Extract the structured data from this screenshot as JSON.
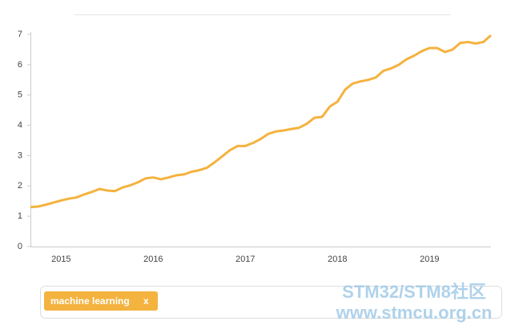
{
  "chart_data": {
    "type": "line",
    "categories": [
      null,
      null,
      null,
      null,
      "2015",
      null,
      null,
      null,
      null,
      null,
      null,
      null,
      null,
      null,
      null,
      null,
      "2016",
      null,
      null,
      null,
      null,
      null,
      null,
      null,
      null,
      null,
      null,
      null,
      "2017",
      null,
      null,
      null,
      null,
      null,
      null,
      null,
      null,
      null,
      null,
      null,
      "2018",
      null,
      null,
      null,
      null,
      null,
      null,
      null,
      null,
      null,
      null,
      null,
      "2019",
      null,
      null,
      null,
      null,
      null,
      null,
      null,
      null
    ],
    "series": [
      {
        "name": "machine learning",
        "color": "#f4b23e",
        "values": [
          1.3,
          1.32,
          1.38,
          1.45,
          1.52,
          1.58,
          1.62,
          1.72,
          1.8,
          1.9,
          1.85,
          1.83,
          1.95,
          2.02,
          2.12,
          2.25,
          2.28,
          2.22,
          2.28,
          2.35,
          2.38,
          2.47,
          2.52,
          2.6,
          2.78,
          2.98,
          3.18,
          3.32,
          3.32,
          3.42,
          3.55,
          3.72,
          3.8,
          3.83,
          3.88,
          3.92,
          4.05,
          4.25,
          4.28,
          4.62,
          4.78,
          5.18,
          5.38,
          5.45,
          5.5,
          5.58,
          5.8,
          5.88,
          6.0,
          6.18,
          6.3,
          6.45,
          6.55,
          6.55,
          6.42,
          6.5,
          6.72,
          6.75,
          6.7,
          6.75,
          6.97
        ]
      }
    ],
    "legend_remove": "x",
    "ylim": [
      0,
      7
    ],
    "yticks": [
      0,
      1,
      2,
      3,
      4,
      5,
      6,
      7
    ]
  },
  "watermark": [
    "STM32/STM8社区",
    "www.stmcu.org.cn"
  ]
}
